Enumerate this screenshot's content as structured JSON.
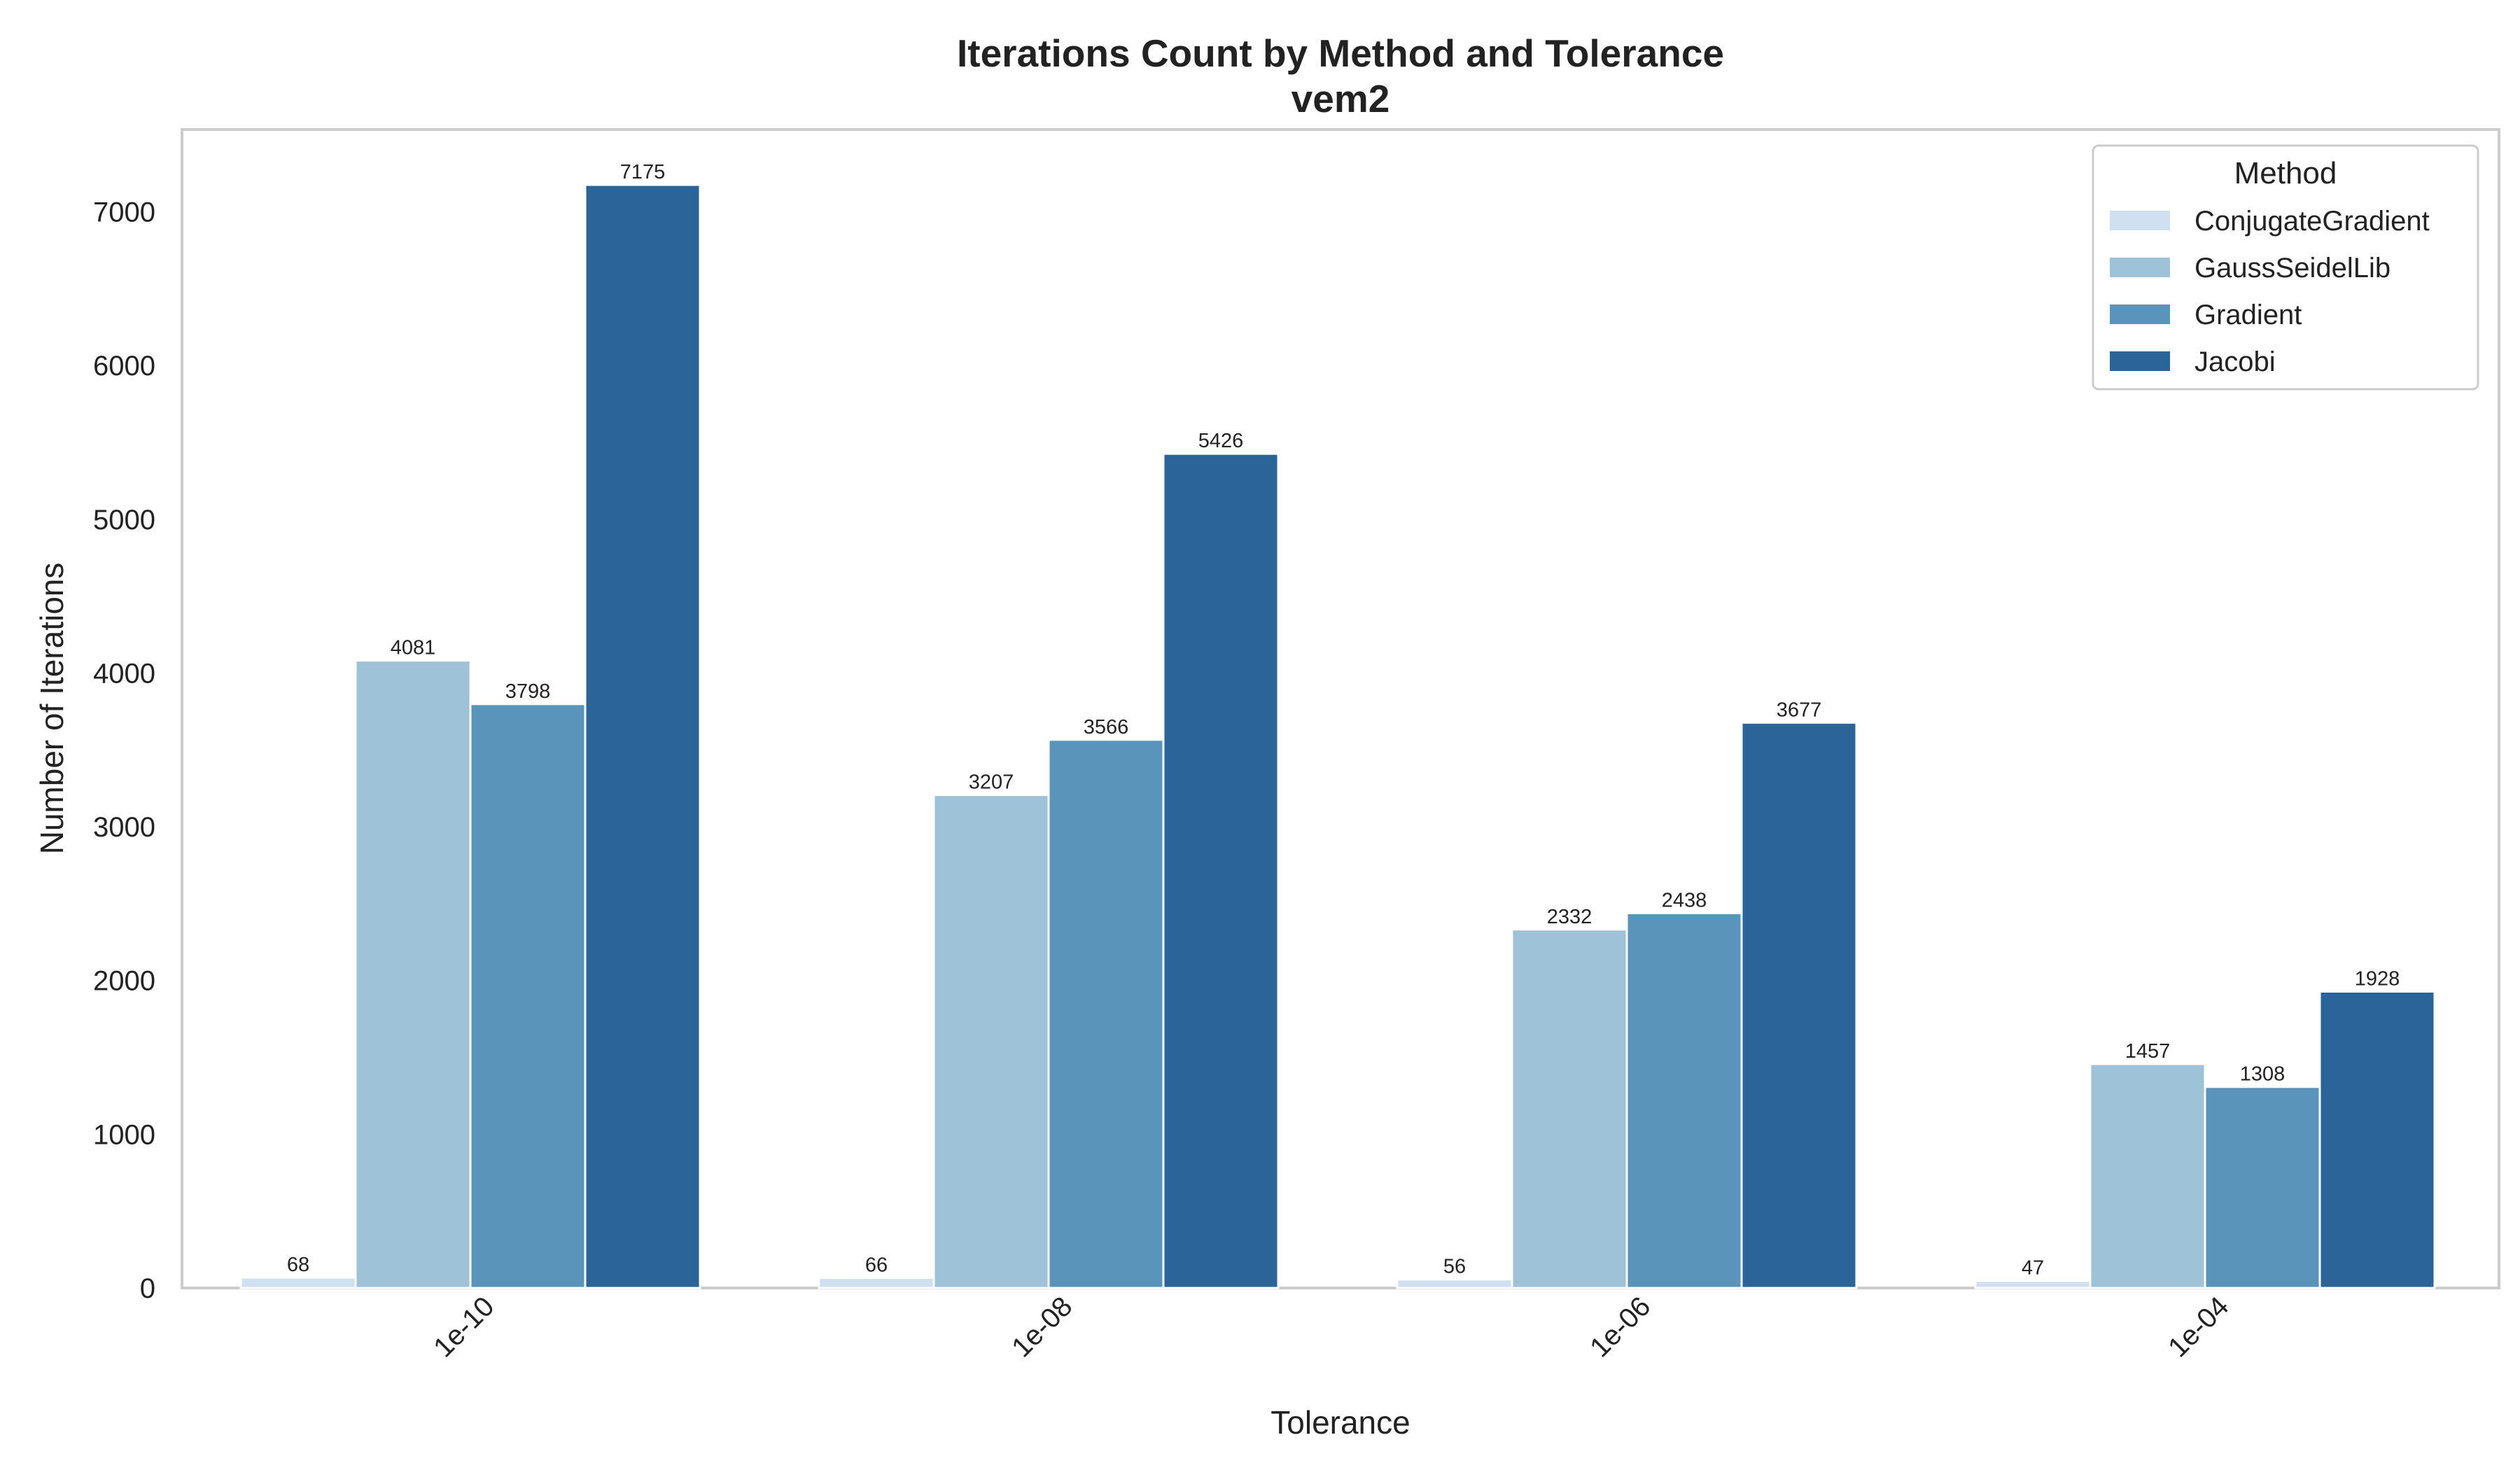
{
  "chart_data": {
    "type": "bar",
    "title": "Iterations Count by Method and Tolerance",
    "subtitle": "vem2",
    "xlabel": "Tolerance",
    "ylabel": "Number of Iterations",
    "categories": [
      "1e-10",
      "1e-08",
      "1e-06",
      "1e-04"
    ],
    "ylim": [
      0,
      7535
    ],
    "yticks": [
      0,
      1000,
      2000,
      3000,
      4000,
      5000,
      6000,
      7000
    ],
    "grid": false,
    "legend": {
      "title": "Method",
      "placement": "top-right"
    },
    "series": [
      {
        "name": "ConjugateGradient",
        "color": "#cfe1f0",
        "values": [
          68,
          66,
          56,
          47
        ]
      },
      {
        "name": "GaussSeidelLib",
        "color": "#9ec2d7",
        "values": [
          4081,
          3207,
          2332,
          1457
        ]
      },
      {
        "name": "Gradient",
        "color": "#5b94ba",
        "values": [
          3798,
          3566,
          2438,
          1308
        ]
      },
      {
        "name": "Jacobi",
        "color": "#2b6499",
        "values": [
          7175,
          5426,
          3677,
          1928
        ]
      }
    ]
  }
}
